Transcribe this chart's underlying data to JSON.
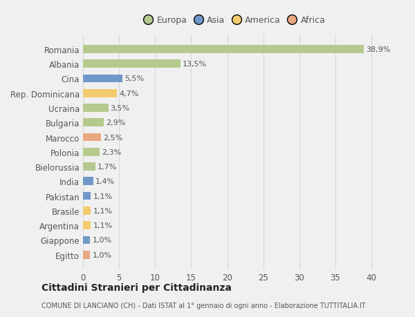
{
  "countries": [
    "Romania",
    "Albania",
    "Cina",
    "Rep. Dominicana",
    "Ucraina",
    "Bulgaria",
    "Marocco",
    "Polonia",
    "Bielorussia",
    "India",
    "Pakistan",
    "Brasile",
    "Argentina",
    "Giappone",
    "Egitto"
  ],
  "values": [
    38.9,
    13.5,
    5.5,
    4.7,
    3.5,
    2.9,
    2.5,
    2.3,
    1.7,
    1.4,
    1.1,
    1.1,
    1.1,
    1.0,
    1.0
  ],
  "labels": [
    "38,9%",
    "13,5%",
    "5,5%",
    "4,7%",
    "3,5%",
    "2,9%",
    "2,5%",
    "2,3%",
    "1,7%",
    "1,4%",
    "1,1%",
    "1,1%",
    "1,1%",
    "1,0%",
    "1,0%"
  ],
  "colors": [
    "#b5c98e",
    "#b5c98e",
    "#7097c8",
    "#f2cc6e",
    "#b5c98e",
    "#b5c98e",
    "#e8a882",
    "#b5c98e",
    "#b5c98e",
    "#7097c8",
    "#7097c8",
    "#f2cc6e",
    "#f2cc6e",
    "#7097c8",
    "#e8a882"
  ],
  "legend_labels": [
    "Europa",
    "Asia",
    "America",
    "Africa"
  ],
  "legend_colors": [
    "#b5c98e",
    "#7097c8",
    "#f2cc6e",
    "#e8a882"
  ],
  "title": "Cittadini Stranieri per Cittadinanza",
  "subtitle": "COMUNE DI LANCIANO (CH) - Dati ISTAT al 1° gennaio di ogni anno - Elaborazione TUTTITALIA.IT",
  "xlim": [
    0,
    42
  ],
  "xticks": [
    0,
    5,
    10,
    15,
    20,
    25,
    30,
    35,
    40
  ],
  "background_color": "#f0f0f0",
  "plot_bg_color": "#f0f0f0",
  "grid_color": "#d8d8d8",
  "bar_height": 0.55
}
